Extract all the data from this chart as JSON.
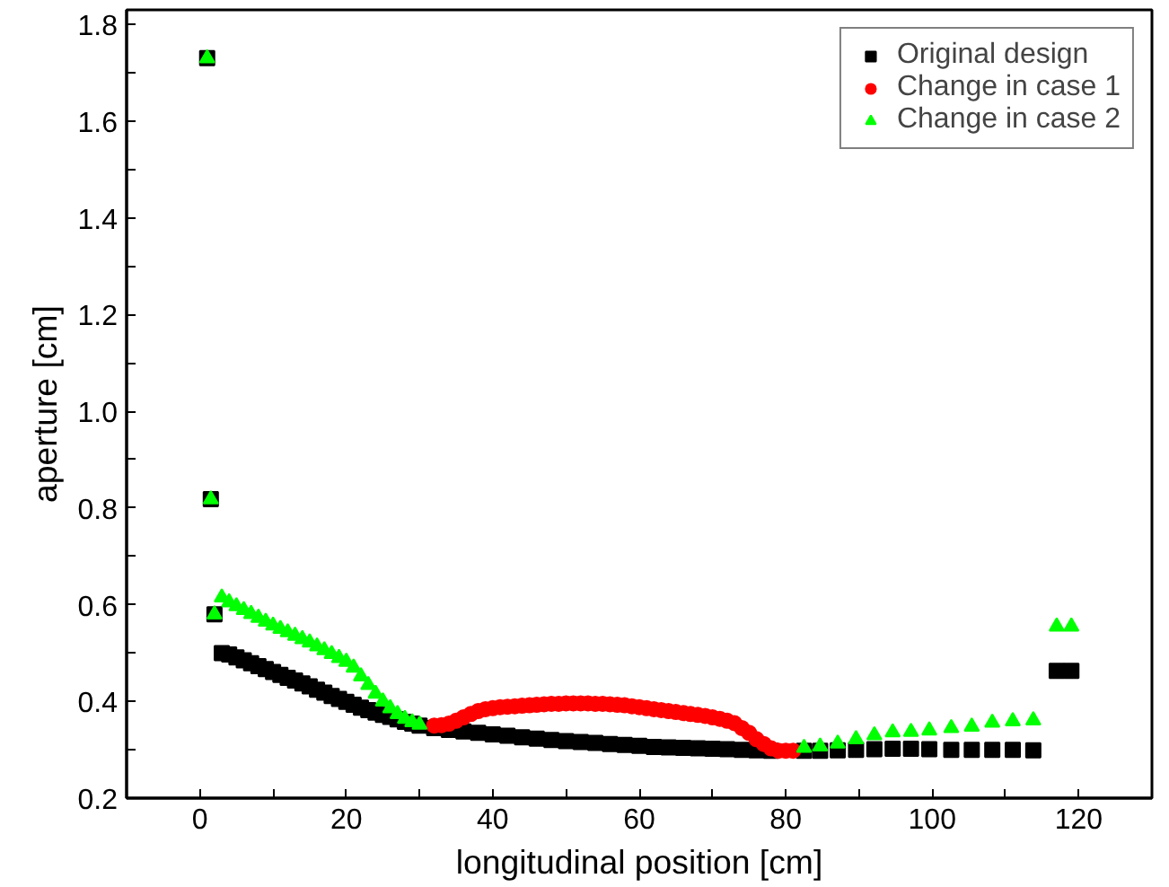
{
  "chart_data": {
    "type": "scatter",
    "xlabel": "longitudinal position [cm]",
    "ylabel": "aperture [cm]",
    "xlim": [
      -10,
      130
    ],
    "ylim": [
      0.2,
      1.83
    ],
    "xticks": [
      {
        "value": -10,
        "label": null
      },
      0,
      {
        "value": 10,
        "label": null
      },
      20,
      {
        "value": 30,
        "label": null
      },
      40,
      {
        "value": 50,
        "label": null
      },
      60,
      {
        "value": 70,
        "label": null
      },
      80,
      {
        "value": 90,
        "label": null
      },
      100,
      {
        "value": 110,
        "label": null
      },
      120,
      {
        "value": 130,
        "label": null
      }
    ],
    "yticks": [
      0.2,
      {
        "value": 0.3,
        "label": null
      },
      0.4,
      {
        "value": 0.5,
        "label": null
      },
      0.6,
      {
        "value": 0.7,
        "label": null
      },
      0.8,
      {
        "value": 0.9,
        "label": null
      },
      {
        "value": 1.0,
        "label": "1.0"
      },
      {
        "value": 1.1,
        "label": null
      },
      1.2,
      {
        "value": 1.3,
        "label": null
      },
      1.4,
      {
        "value": 1.5,
        "label": null
      },
      1.6,
      {
        "value": 1.7,
        "label": null
      },
      1.8
    ],
    "grid": false,
    "legend": "top right",
    "series": [
      {
        "name": "Original design",
        "color": "#000000",
        "marker": "square",
        "x": [
          1,
          1.5,
          2,
          3,
          4,
          5,
          6,
          7,
          8,
          9,
          10,
          11,
          12,
          13,
          14,
          15,
          16,
          17,
          18,
          19,
          20,
          21,
          22,
          23,
          24,
          25,
          26,
          27,
          28,
          29,
          30,
          32,
          34,
          36,
          38,
          40,
          42,
          44,
          46,
          48,
          50,
          52,
          54,
          56,
          58,
          60,
          62,
          64,
          66,
          68,
          70,
          72,
          74,
          76,
          78,
          82.5,
          84.7,
          87.1,
          89.6,
          92.1,
          94.6,
          97.1,
          99.6,
          102.6,
          105.4,
          108.2,
          111,
          113.8,
          117,
          119
        ],
        "values": [
          1.73,
          0.818,
          0.58,
          0.5,
          0.497,
          0.491,
          0.485,
          0.479,
          0.473,
          0.467,
          0.461,
          0.455,
          0.449,
          0.443,
          0.437,
          0.431,
          0.424,
          0.418,
          0.411,
          0.405,
          0.399,
          0.393,
          0.387,
          0.382,
          0.377,
          0.372,
          0.368,
          0.363,
          0.358,
          0.354,
          0.35,
          0.345,
          0.341,
          0.338,
          0.335,
          0.332,
          0.329,
          0.326,
          0.323,
          0.32,
          0.318,
          0.316,
          0.314,
          0.312,
          0.31,
          0.308,
          0.306,
          0.305,
          0.304,
          0.303,
          0.302,
          0.301,
          0.3,
          0.299,
          0.298,
          0.298,
          0.298,
          0.299,
          0.3,
          0.301,
          0.302,
          0.302,
          0.301,
          0.3,
          0.3,
          0.3,
          0.3,
          0.299,
          0.463,
          0.463
        ]
      },
      {
        "name": "Change in case 1",
        "color": "#ff0000",
        "marker": "circle",
        "x": [
          32,
          33,
          34,
          35,
          36,
          37,
          38,
          39,
          40,
          41,
          42,
          43,
          44,
          45,
          46,
          47,
          48,
          49,
          50,
          51,
          52,
          53,
          54,
          55,
          56,
          57,
          58,
          59,
          60,
          61,
          62,
          63,
          64,
          65,
          66,
          67,
          68,
          69,
          70,
          71,
          72,
          73,
          74,
          75,
          76,
          77,
          78,
          79,
          80,
          81
        ],
        "values": [
          0.35,
          0.351,
          0.354,
          0.36,
          0.367,
          0.374,
          0.38,
          0.384,
          0.386,
          0.388,
          0.389,
          0.39,
          0.391,
          0.392,
          0.393,
          0.394,
          0.395,
          0.395,
          0.396,
          0.396,
          0.396,
          0.396,
          0.395,
          0.395,
          0.394,
          0.393,
          0.392,
          0.39,
          0.388,
          0.386,
          0.384,
          0.382,
          0.38,
          0.378,
          0.376,
          0.374,
          0.372,
          0.37,
          0.367,
          0.364,
          0.36,
          0.355,
          0.345,
          0.335,
          0.322,
          0.312,
          0.303,
          0.298,
          0.298,
          0.298
        ]
      },
      {
        "name": "Change in case 2",
        "color": "#00ff00",
        "marker": "triangle",
        "x": [
          1,
          1.5,
          2,
          3,
          4,
          5,
          6,
          7,
          8,
          9,
          10,
          11,
          12,
          13,
          14,
          15,
          16,
          17,
          18,
          19,
          20,
          21,
          22,
          23,
          24,
          25,
          26,
          27,
          28,
          29,
          30,
          82.5,
          84.7,
          87.1,
          89.6,
          92.1,
          94.6,
          97.1,
          99.6,
          102.6,
          105.4,
          108.2,
          111,
          113.8,
          117,
          119
        ],
        "values": [
          1.73,
          0.818,
          0.58,
          0.615,
          0.605,
          0.597,
          0.589,
          0.581,
          0.573,
          0.565,
          0.557,
          0.55,
          0.543,
          0.536,
          0.529,
          0.522,
          0.514,
          0.506,
          0.498,
          0.49,
          0.482,
          0.47,
          0.452,
          0.434,
          0.416,
          0.4,
          0.386,
          0.374,
          0.364,
          0.357,
          0.352,
          0.304,
          0.307,
          0.313,
          0.322,
          0.33,
          0.336,
          0.337,
          0.34,
          0.345,
          0.348,
          0.356,
          0.359,
          0.361,
          0.555,
          0.555
        ]
      }
    ]
  }
}
